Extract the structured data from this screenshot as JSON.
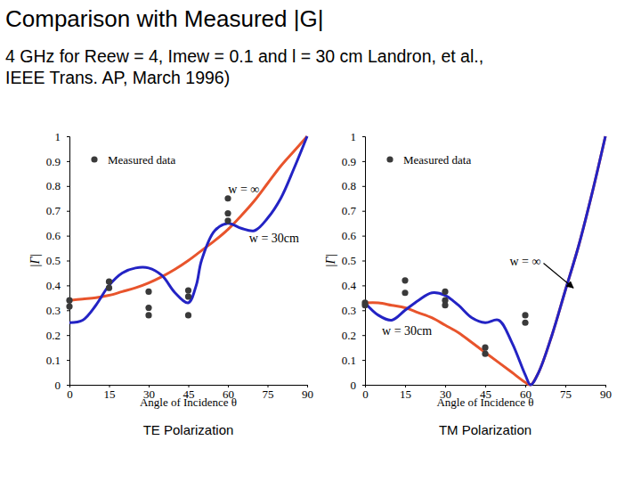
{
  "title": "Comparison with Measured |G|",
  "subtitle": [
    "4 GHz for Reew = 4, Imew = 0.1 and l = 30 cm Landron, et al.,",
    "IEEE Trans. AP, March 1996)"
  ],
  "chart_data": [
    {
      "type": "line",
      "title": "TE Polarization",
      "x_label": "Angle of Incidence θ",
      "y_label": "|Γ|",
      "xlim": [
        0,
        90
      ],
      "ylim": [
        0,
        1
      ],
      "xticks": [
        0,
        15,
        30,
        45,
        60,
        75,
        90
      ],
      "yticks": [
        0,
        0.1,
        0.2,
        0.3,
        0.4,
        0.5,
        0.6,
        0.7,
        0.8,
        0.9,
        1
      ],
      "legend": "upper left",
      "series": [
        {
          "name": "Measured data",
          "type": "scatter",
          "marker": "circle",
          "color": "#3a3a3a",
          "x": [
            0,
            0,
            15,
            15,
            30,
            30,
            30,
            45,
            45,
            45,
            60,
            60,
            60
          ],
          "values": [
            0.34,
            0.315,
            0.415,
            0.39,
            0.375,
            0.31,
            0.28,
            0.38,
            0.355,
            0.28,
            0.75,
            0.69,
            0.66
          ]
        },
        {
          "type": "line",
          "color": "#e8542c",
          "x": [
            0,
            5,
            10,
            15,
            20,
            25,
            30,
            35,
            40,
            45,
            50,
            55,
            60,
            65,
            70,
            75,
            80,
            85,
            90
          ],
          "values": [
            0.34,
            0.345,
            0.35,
            0.36,
            0.375,
            0.39,
            0.41,
            0.435,
            0.465,
            0.5,
            0.54,
            0.58,
            0.625,
            0.68,
            0.74,
            0.81,
            0.88,
            0.94,
            1
          ]
        },
        {
          "type": "line",
          "color": "#2323c4",
          "x": [
            0,
            5,
            10,
            15,
            20,
            25,
            30,
            35,
            40,
            45,
            48,
            50,
            55,
            60,
            65,
            70,
            75,
            80,
            85,
            90
          ],
          "values": [
            0.25,
            0.26,
            0.32,
            0.4,
            0.45,
            0.47,
            0.47,
            0.44,
            0.37,
            0.33,
            0.4,
            0.5,
            0.62,
            0.65,
            0.63,
            0.62,
            0.67,
            0.75,
            0.87,
            1
          ]
        }
      ],
      "annotations": [
        {
          "text": "w = ∞",
          "x": 66,
          "y": 0.79
        },
        {
          "text": "w = 30cm",
          "x": 77.5,
          "y": 0.59
        }
      ]
    },
    {
      "type": "line",
      "title": "TM Polarization",
      "x_label": "Angle of Incidence θ",
      "y_label": "|Γ|",
      "xlim": [
        0,
        90
      ],
      "ylim": [
        0,
        1
      ],
      "xticks": [
        0,
        15,
        30,
        45,
        60,
        75,
        90
      ],
      "yticks": [
        0,
        0.1,
        0.2,
        0.3,
        0.4,
        0.5,
        0.6,
        0.7,
        0.8,
        0.9,
        1
      ],
      "legend": "upper left",
      "series": [
        {
          "name": "Measured data",
          "type": "scatter",
          "marker": "circle",
          "color": "#3a3a3a",
          "x": [
            0,
            0,
            15,
            15,
            30,
            30,
            30,
            45,
            45,
            60,
            60
          ],
          "values": [
            0.33,
            0.32,
            0.42,
            0.37,
            0.375,
            0.34,
            0.32,
            0.15,
            0.125,
            0.28,
            0.25
          ]
        },
        {
          "type": "line",
          "color": "#e8542c",
          "x": [
            0,
            5,
            10,
            15,
            20,
            25,
            30,
            35,
            40,
            45,
            50,
            55,
            60,
            62,
            65,
            70,
            75,
            80,
            85,
            90
          ],
          "values": [
            0.33,
            0.33,
            0.32,
            0.31,
            0.29,
            0.27,
            0.24,
            0.21,
            0.17,
            0.13,
            0.09,
            0.05,
            0.01,
            0,
            0.05,
            0.2,
            0.38,
            0.56,
            0.77,
            1
          ]
        },
        {
          "type": "line",
          "color": "#2323c4",
          "x": [
            0,
            5,
            10,
            15,
            20,
            25,
            30,
            35,
            40,
            45,
            50,
            55,
            60,
            62,
            65,
            70,
            75,
            80,
            85,
            90
          ],
          "values": [
            0.33,
            0.28,
            0.26,
            0.3,
            0.34,
            0.37,
            0.36,
            0.32,
            0.27,
            0.25,
            0.26,
            0.17,
            0.04,
            0,
            0.05,
            0.2,
            0.38,
            0.56,
            0.77,
            1
          ]
        }
      ],
      "annotations": [
        {
          "text": "w = ∞",
          "x": 60,
          "y": 0.5,
          "arrow": [
            78,
            0.39
          ]
        },
        {
          "text": "w = 30cm",
          "x": 15.7,
          "y": 0.22
        }
      ]
    }
  ]
}
